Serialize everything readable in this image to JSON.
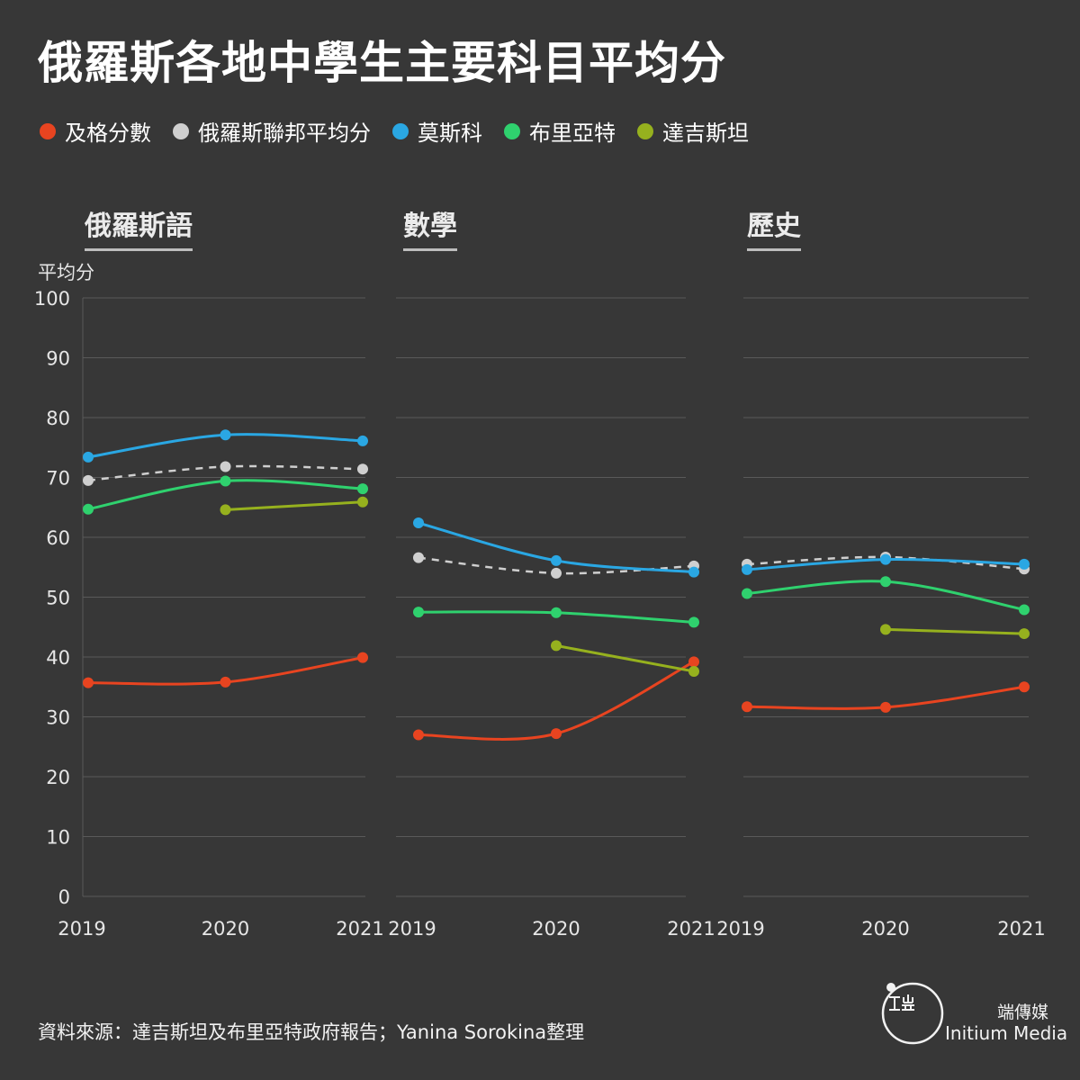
{
  "title": "俄羅斯各地中學生主要科目平均分",
  "legend": [
    {
      "label": "及格分數",
      "color": "#e84420"
    },
    {
      "label": "俄羅斯聯邦平均分",
      "color": "#cfcfcf"
    },
    {
      "label": "莫斯科",
      "color": "#2aa7e3"
    },
    {
      "label": "布里亞特",
      "color": "#2fd16e"
    },
    {
      "label": "達吉斯坦",
      "color": "#96b11e"
    }
  ],
  "ylabel": "平均分",
  "source": "資料來源：達吉斯坦及布里亞特政府報告；Yanina Sorokina整理",
  "brand": {
    "cn": "端傳媒",
    "en": "Initium Media"
  },
  "chart_data": [
    {
      "type": "line",
      "title": "俄羅斯語",
      "x": [
        "2019",
        "2020",
        "2021"
      ],
      "ylim": [
        0,
        100
      ],
      "yticks": [
        0,
        10,
        20,
        30,
        40,
        50,
        60,
        70,
        80,
        90,
        100
      ],
      "series": [
        {
          "name": "及格分數",
          "color": "#e84420",
          "values": [
            35.7,
            35.8,
            39.9
          ]
        },
        {
          "name": "俄羅斯聯邦平均分",
          "color": "#cfcfcf",
          "dashed": true,
          "values": [
            69.5,
            71.8,
            71.4
          ]
        },
        {
          "name": "莫斯科",
          "color": "#2aa7e3",
          "values": [
            73.4,
            77.1,
            76.1
          ]
        },
        {
          "name": "布里亞特",
          "color": "#2fd16e",
          "values": [
            64.7,
            69.4,
            68.1
          ]
        },
        {
          "name": "達吉斯坦",
          "color": "#96b11e",
          "values": [
            null,
            64.6,
            65.9
          ]
        }
      ]
    },
    {
      "type": "line",
      "title": "數學",
      "x": [
        "2019",
        "2020",
        "2021"
      ],
      "ylim": [
        0,
        100
      ],
      "series": [
        {
          "name": "及格分數",
          "color": "#e84420",
          "values": [
            27.0,
            27.2,
            39.2
          ]
        },
        {
          "name": "俄羅斯聯邦平均分",
          "color": "#cfcfcf",
          "dashed": true,
          "values": [
            56.6,
            54.0,
            55.2
          ]
        },
        {
          "name": "莫斯科",
          "color": "#2aa7e3",
          "values": [
            62.4,
            56.1,
            54.2
          ]
        },
        {
          "name": "布里亞特",
          "color": "#2fd16e",
          "values": [
            47.5,
            47.4,
            45.8
          ]
        },
        {
          "name": "達吉斯坦",
          "color": "#96b11e",
          "values": [
            null,
            41.9,
            37.6
          ]
        }
      ]
    },
    {
      "type": "line",
      "title": "歷史",
      "x": [
        "2019",
        "2020",
        "2021"
      ],
      "ylim": [
        0,
        100
      ],
      "series": [
        {
          "name": "及格分數",
          "color": "#e84420",
          "values": [
            31.7,
            31.6,
            35.0
          ]
        },
        {
          "name": "俄羅斯聯邦平均分",
          "color": "#cfcfcf",
          "dashed": true,
          "values": [
            55.5,
            56.7,
            54.7
          ]
        },
        {
          "name": "莫斯科",
          "color": "#2aa7e3",
          "values": [
            54.6,
            56.3,
            55.5
          ]
        },
        {
          "name": "布里亞特",
          "color": "#2fd16e",
          "values": [
            50.6,
            52.6,
            47.9
          ]
        },
        {
          "name": "達吉斯坦",
          "color": "#96b11e",
          "values": [
            null,
            44.6,
            43.9
          ]
        }
      ]
    }
  ]
}
